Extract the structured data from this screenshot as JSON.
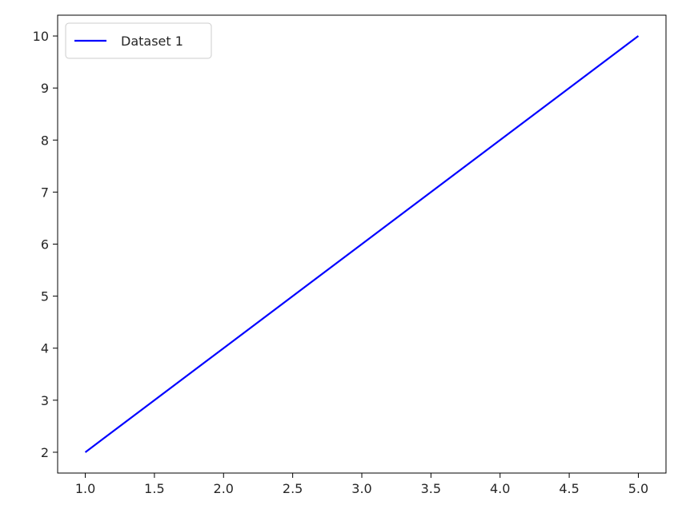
{
  "chart_data": {
    "type": "line",
    "title": "",
    "xlabel": "",
    "ylabel": "",
    "x": [
      1,
      2,
      3,
      4,
      5
    ],
    "series": [
      {
        "name": "Dataset 1",
        "values": [
          2,
          4,
          6,
          8,
          10
        ],
        "color": "#0000ff"
      }
    ],
    "xlim": [
      0.8,
      5.2
    ],
    "ylim": [
      1.6,
      10.4
    ],
    "xticks": [
      "1.0",
      "1.5",
      "2.0",
      "2.5",
      "3.0",
      "3.5",
      "4.0",
      "4.5",
      "5.0"
    ],
    "yticks": [
      "2",
      "3",
      "4",
      "5",
      "6",
      "7",
      "8",
      "9",
      "10"
    ],
    "grid": false,
    "legend": {
      "position": "upper-left",
      "labels": [
        "Dataset 1"
      ]
    }
  }
}
